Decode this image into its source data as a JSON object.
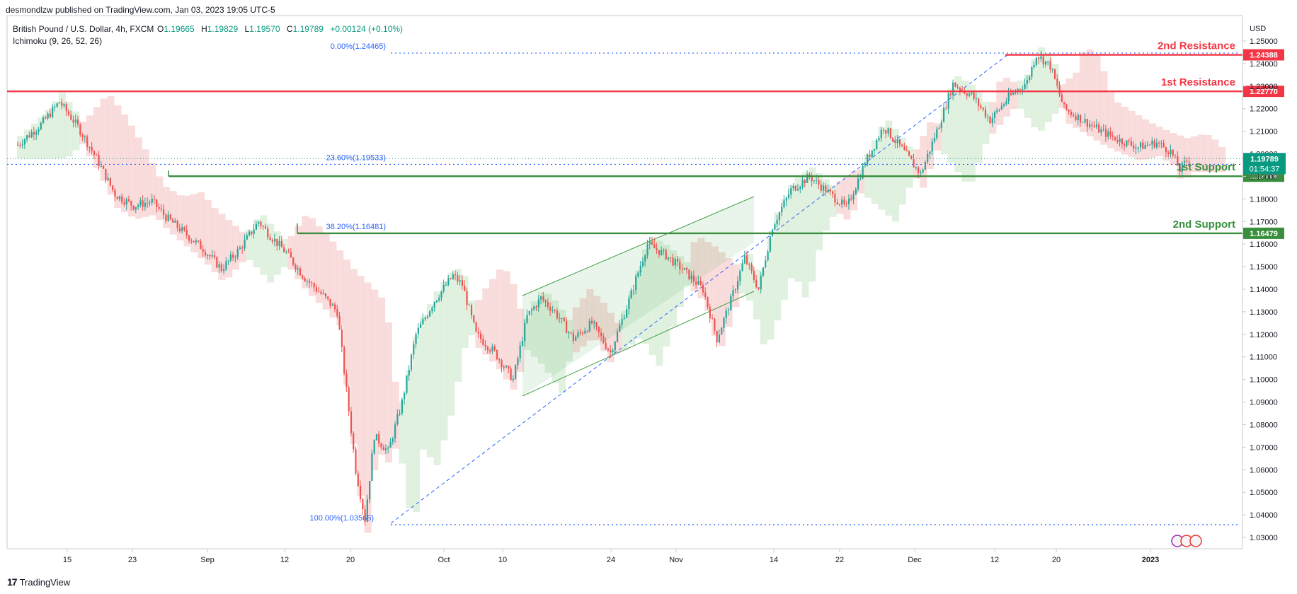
{
  "header": {
    "published": "desmondlzw published on TradingView.com, Jan 03, 2023 19:05 UTC-5",
    "symbol": "British Pound / U.S. Dollar, 4h, FXCM",
    "o_label": "O",
    "o_value": "1.19665",
    "h_label": "H",
    "h_value": "1.19829",
    "l_label": "L",
    "l_value": "1.19570",
    "c_label": "C",
    "c_value": "1.19789",
    "change": "+0.00124 (+0.10%)",
    "indicator": "Ichimoku (9, 26, 52, 26)"
  },
  "footer": {
    "brand": "TradingView",
    "logo_mark": "17"
  },
  "colors": {
    "up": "#26a69a",
    "down": "#ef5350",
    "resistance": "#f23645",
    "support": "#388e3c",
    "fib": "#2962ff"
  },
  "chart_data": {
    "type": "candlestick",
    "currency_label": "USD",
    "ylim": [
      1.025,
      1.255
    ],
    "y_ticks": [
      "1.25000",
      "1.24000",
      "1.23000",
      "1.22000",
      "1.21000",
      "1.20000",
      "1.19000",
      "1.18000",
      "1.17000",
      "1.16000",
      "1.15000",
      "1.14000",
      "1.13000",
      "1.12000",
      "1.11000",
      "1.10000",
      "1.09000",
      "1.08000",
      "1.07000",
      "1.06000",
      "1.05000",
      "1.04000",
      "1.03000"
    ],
    "x_ticks": [
      "15",
      "23",
      "Sep",
      "12",
      "20",
      "Oct",
      "10",
      "24",
      "Nov",
      "14",
      "22",
      "Dec",
      "12",
      "20",
      "2023"
    ],
    "price_path": [
      [
        0,
        1.204
      ],
      [
        10,
        1.213
      ],
      [
        18,
        1.223
      ],
      [
        26,
        1.212
      ],
      [
        34,
        1.198
      ],
      [
        42,
        1.182
      ],
      [
        50,
        1.177
      ],
      [
        58,
        1.179
      ],
      [
        64,
        1.172
      ],
      [
        72,
        1.165
      ],
      [
        80,
        1.158
      ],
      [
        88,
        1.149
      ],
      [
        96,
        1.158
      ],
      [
        104,
        1.17
      ],
      [
        108,
        1.165
      ],
      [
        116,
        1.156
      ],
      [
        124,
        1.145
      ],
      [
        132,
        1.137
      ],
      [
        138,
        1.13
      ],
      [
        146,
        1.06
      ],
      [
        150,
        1.038
      ],
      [
        154,
        1.075
      ],
      [
        160,
        1.068
      ],
      [
        166,
        1.09
      ],
      [
        172,
        1.12
      ],
      [
        180,
        1.135
      ],
      [
        188,
        1.146
      ],
      [
        192,
        1.142
      ],
      [
        198,
        1.12
      ],
      [
        206,
        1.112
      ],
      [
        214,
        1.1
      ],
      [
        220,
        1.128
      ],
      [
        226,
        1.136
      ],
      [
        232,
        1.13
      ],
      [
        240,
        1.118
      ],
      [
        248,
        1.125
      ],
      [
        256,
        1.112
      ],
      [
        264,
        1.135
      ],
      [
        272,
        1.16
      ],
      [
        280,
        1.155
      ],
      [
        288,
        1.148
      ],
      [
        296,
        1.14
      ],
      [
        302,
        1.118
      ],
      [
        308,
        1.135
      ],
      [
        314,
        1.154
      ],
      [
        320,
        1.14
      ],
      [
        326,
        1.168
      ],
      [
        334,
        1.184
      ],
      [
        342,
        1.19
      ],
      [
        350,
        1.183
      ],
      [
        358,
        1.176
      ],
      [
        366,
        1.196
      ],
      [
        374,
        1.212
      ],
      [
        382,
        1.202
      ],
      [
        390,
        1.191
      ],
      [
        398,
        1.213
      ],
      [
        404,
        1.231
      ],
      [
        412,
        1.226
      ],
      [
        420,
        1.215
      ],
      [
        428,
        1.225
      ],
      [
        436,
        1.232
      ],
      [
        440,
        1.244
      ],
      [
        446,
        1.239
      ],
      [
        452,
        1.22
      ],
      [
        460,
        1.215
      ],
      [
        468,
        1.21
      ],
      [
        476,
        1.206
      ],
      [
        484,
        1.203
      ],
      [
        492,
        1.205
      ],
      [
        498,
        1.201
      ],
      [
        502,
        1.193
      ],
      [
        506,
        1.198
      ]
    ],
    "levels": [
      {
        "name": "2nd Resistance",
        "value": 1.24388,
        "label": "1.24388",
        "color": "#f23645"
      },
      {
        "name": "1st Resistance",
        "value": 1.2277,
        "label": "1.22770",
        "color": "#f23645"
      },
      {
        "name": "1st Support",
        "value": 1.19008,
        "label": "1.19008",
        "color": "#388e3c"
      },
      {
        "name": "2nd Support",
        "value": 1.16479,
        "label": "1.16479",
        "color": "#388e3c"
      }
    ],
    "fib_levels": [
      {
        "label": "0.00%(1.24465)",
        "value": 1.24465
      },
      {
        "label": "23.60%(1.19533)",
        "value": 1.19533
      },
      {
        "label": "38.20%(1.16481)",
        "value": 1.16481
      },
      {
        "label": "100.00%(1.03565)",
        "value": 1.03565
      }
    ],
    "current_price": {
      "value": 1.19789,
      "label": "1.19789",
      "countdown": "01:54:37"
    }
  }
}
